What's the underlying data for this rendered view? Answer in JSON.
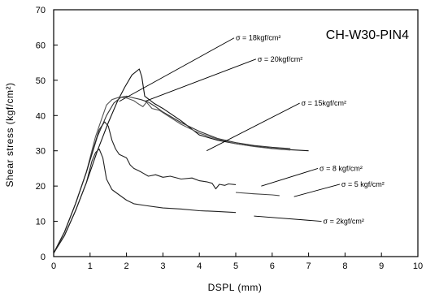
{
  "chart_data": {
    "type": "line",
    "title": "CH-W30-PIN4",
    "xlabel": "DSPL (mm)",
    "ylabel": "Shear stress (kgf/cm²)",
    "xlim": [
      0,
      10
    ],
    "ylim": [
      0,
      70
    ],
    "xticks": [
      "0",
      "1",
      "2",
      "3",
      "4",
      "5",
      "6",
      "7",
      "8",
      "9",
      "10"
    ],
    "yticks": [
      "0",
      "10",
      "20",
      "30",
      "40",
      "50",
      "60",
      "70"
    ],
    "grid": false,
    "series": [
      {
        "name": "σ = 18kgf/cm²",
        "points": [
          [
            0,
            1
          ],
          [
            0.3,
            6
          ],
          [
            0.6,
            13
          ],
          [
            0.9,
            21
          ],
          [
            1.2,
            30
          ],
          [
            1.5,
            38
          ],
          [
            1.75,
            44
          ],
          [
            1.95,
            48
          ],
          [
            2.15,
            51.5
          ],
          [
            2.35,
            53.2
          ],
          [
            2.42,
            51
          ],
          [
            2.5,
            45.5
          ],
          [
            2.75,
            43.5
          ],
          [
            3.0,
            42
          ],
          [
            3.5,
            38.5
          ],
          [
            4.0,
            34.5
          ],
          [
            4.5,
            33
          ],
          [
            5.0,
            32
          ],
          [
            5.5,
            31.3
          ],
          [
            6.0,
            30.7
          ],
          [
            6.5,
            30.3
          ],
          [
            7.0,
            30
          ]
        ]
      },
      {
        "name": "σ = 20kgf/cm²",
        "points": [
          [
            0,
            1
          ],
          [
            0.3,
            7
          ],
          [
            0.6,
            15
          ],
          [
            0.9,
            24
          ],
          [
            1.2,
            34
          ],
          [
            1.45,
            40
          ],
          [
            1.65,
            43.5
          ],
          [
            1.85,
            45.2
          ],
          [
            2.0,
            45.5
          ],
          [
            2.2,
            45
          ],
          [
            2.4,
            44.5
          ],
          [
            2.6,
            43.8
          ],
          [
            2.8,
            42.5
          ],
          [
            3.0,
            41
          ],
          [
            3.5,
            38
          ],
          [
            4.0,
            35.5
          ],
          [
            4.5,
            33.5
          ],
          [
            5.0,
            32.3
          ],
          [
            5.5,
            31.5
          ],
          [
            6.0,
            31
          ],
          [
            6.5,
            30.6
          ]
        ]
      },
      {
        "name": "σ = 15kgf/cm²",
        "points": [
          [
            0,
            1
          ],
          [
            0.3,
            7
          ],
          [
            0.6,
            15
          ],
          [
            0.9,
            24
          ],
          [
            1.15,
            34
          ],
          [
            1.3,
            38.5
          ],
          [
            1.45,
            43
          ],
          [
            1.6,
            44.5
          ],
          [
            1.8,
            45.2
          ],
          [
            2.0,
            45
          ],
          [
            2.2,
            44.2
          ],
          [
            2.3,
            43.5
          ],
          [
            2.45,
            42.5
          ],
          [
            2.55,
            43.8
          ],
          [
            2.7,
            42
          ],
          [
            2.9,
            41.5
          ],
          [
            3.2,
            39.5
          ],
          [
            3.5,
            37.5
          ],
          [
            4.0,
            35
          ],
          [
            4.5,
            33.3
          ],
          [
            5.0,
            32
          ],
          [
            5.5,
            31.2
          ],
          [
            6.0,
            30.6
          ],
          [
            6.5,
            30.2
          ]
        ]
      },
      {
        "name": "σ = 8 kgf/cm²",
        "points": [
          [
            0,
            1
          ],
          [
            0.3,
            7
          ],
          [
            0.6,
            15
          ],
          [
            0.9,
            24
          ],
          [
            1.1,
            31
          ],
          [
            1.25,
            36
          ],
          [
            1.4,
            38.2
          ],
          [
            1.5,
            37
          ],
          [
            1.6,
            33
          ],
          [
            1.7,
            30.5
          ],
          [
            1.8,
            29
          ],
          [
            2.0,
            28
          ],
          [
            2.1,
            26
          ],
          [
            2.2,
            25
          ],
          [
            2.4,
            24
          ],
          [
            2.6,
            22.8
          ],
          [
            2.8,
            23.2
          ],
          [
            3.0,
            22.5
          ],
          [
            3.2,
            22.8
          ],
          [
            3.5,
            22
          ],
          [
            3.8,
            22.3
          ],
          [
            4.0,
            21.5
          ],
          [
            4.2,
            21.2
          ],
          [
            4.35,
            20.8
          ],
          [
            4.45,
            19.2
          ],
          [
            4.55,
            20.5
          ],
          [
            4.7,
            20.2
          ],
          [
            4.8,
            20.6
          ],
          [
            5.0,
            20.4
          ]
        ]
      },
      {
        "name": "σ = 5 kgf/cm²",
        "points": [
          [
            5.0,
            18.2
          ],
          [
            5.5,
            17.8
          ],
          [
            6.0,
            17.5
          ],
          [
            6.2,
            17.3
          ]
        ]
      },
      {
        "name": "σ = 2kgf/cm²",
        "points": [
          [
            0,
            1
          ],
          [
            0.3,
            6
          ],
          [
            0.6,
            13
          ],
          [
            0.9,
            21
          ],
          [
            1.05,
            27
          ],
          [
            1.15,
            29.5
          ],
          [
            1.25,
            30.5
          ],
          [
            1.35,
            28
          ],
          [
            1.45,
            22
          ],
          [
            1.6,
            19
          ],
          [
            1.8,
            17.5
          ],
          [
            2.0,
            16
          ],
          [
            2.2,
            15
          ],
          [
            2.5,
            14.5
          ],
          [
            3.0,
            13.8
          ],
          [
            3.5,
            13.5
          ],
          [
            4.0,
            13
          ],
          [
            4.5,
            12.8
          ],
          [
            5.0,
            12.5
          ]
        ]
      }
    ],
    "annotations": {
      "leaders": [
        {
          "label": "σ = 18kgf/cm²",
          "from": [
            5.0,
            62
          ],
          "to": [
            1.8,
            44
          ]
        },
        {
          "label": "σ = 20kgf/cm²",
          "from": [
            5.6,
            56
          ],
          "to": [
            2.5,
            44
          ]
        },
        {
          "label": "σ = 15kgf/cm²",
          "from": [
            6.8,
            43.5
          ],
          "to": [
            4.2,
            30
          ]
        },
        {
          "label": "σ = 8 kgf/cm²",
          "from": [
            7.3,
            25
          ],
          "to": [
            5.7,
            20
          ]
        },
        {
          "label": "σ = 5 kgf/cm²",
          "from": [
            7.9,
            20.5
          ],
          "to": [
            6.6,
            17
          ]
        },
        {
          "label": "σ = 2kgf/cm²",
          "from": [
            7.4,
            10
          ],
          "to": [
            5.5,
            11.5
          ]
        }
      ]
    }
  }
}
